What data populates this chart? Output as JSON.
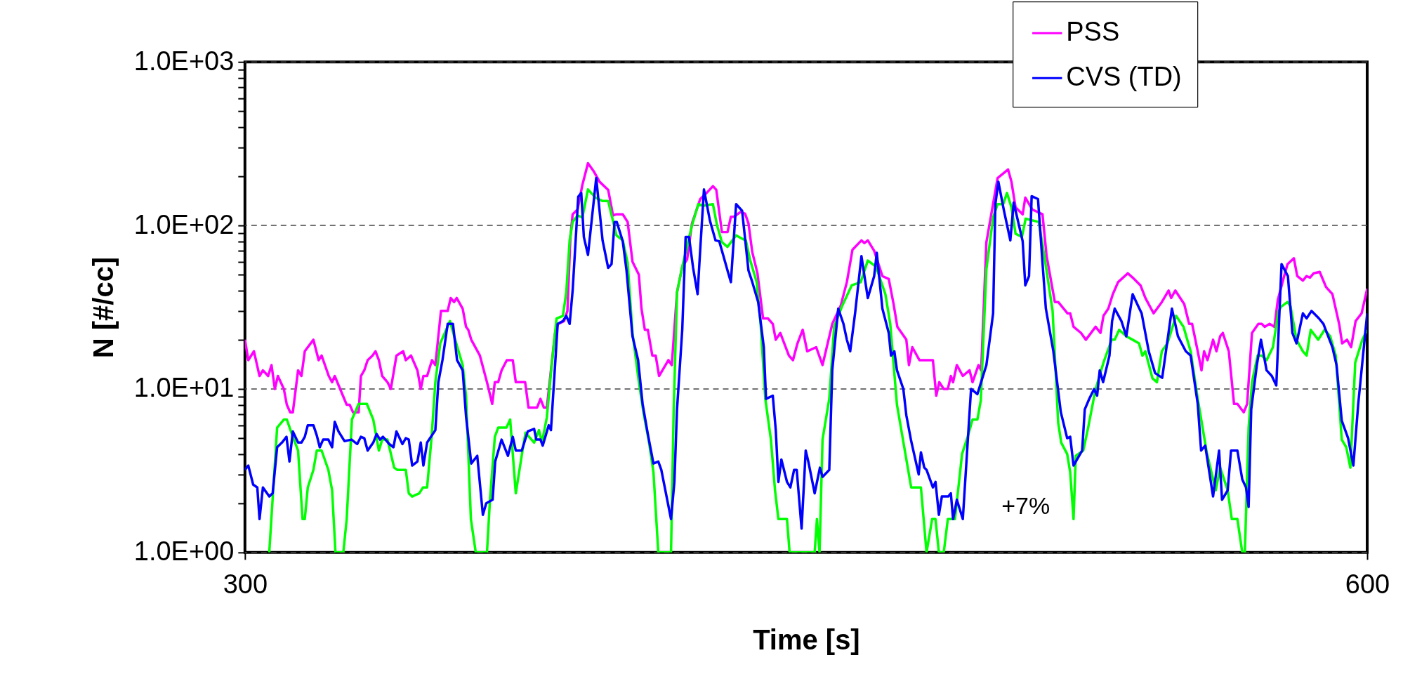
{
  "chart_data": {
    "type": "line",
    "xlabel": "Time [s]",
    "ylabel": "N [#/cc]",
    "log": true,
    "xlim": [
      300,
      600
    ],
    "xticks": [
      300,
      600
    ],
    "ylim": [
      1,
      1000
    ],
    "yticks": [
      {
        "value": 1,
        "label": "1.0E+00"
      },
      {
        "value": 2,
        "label": null
      },
      {
        "value": 3,
        "label": null
      },
      {
        "value": 4,
        "label": null
      },
      {
        "value": 5,
        "label": null
      },
      {
        "value": 6,
        "label": null
      },
      {
        "value": 7,
        "label": null
      },
      {
        "value": 8,
        "label": null
      },
      {
        "value": 9,
        "label": null
      },
      {
        "value": 10,
        "label": "1.0E+01"
      },
      {
        "value": 20,
        "label": null
      },
      {
        "value": 30,
        "label": null
      },
      {
        "value": 40,
        "label": null
      },
      {
        "value": 50,
        "label": null
      },
      {
        "value": 60,
        "label": null
      },
      {
        "value": 70,
        "label": null
      },
      {
        "value": 80,
        "label": null
      },
      {
        "value": 90,
        "label": null
      },
      {
        "value": 100,
        "label": "1.0E+02"
      },
      {
        "value": 200,
        "label": null
      },
      {
        "value": 300,
        "label": null
      },
      {
        "value": 400,
        "label": null
      },
      {
        "value": 500,
        "label": null
      },
      {
        "value": 600,
        "label": null
      },
      {
        "value": 700,
        "label": null
      },
      {
        "value": 800,
        "label": null
      },
      {
        "value": 900,
        "label": null
      },
      {
        "value": 1000,
        "label": "1.0E+03"
      }
    ],
    "grid": "y",
    "legend": "top right",
    "marker": "none",
    "line_style": "solid",
    "annotations": [
      "+7%"
    ],
    "series": [
      {
        "name": "PSS",
        "color": "#ff00ff",
        "x": [
          300,
          300.9,
          302.4,
          303.9,
          304.8,
          306.2,
          307.1,
          308,
          308.8,
          310.4,
          311.2,
          312.1,
          312.8,
          314.2,
          315.1,
          316,
          316.8,
          318.3,
          319.7,
          320.5,
          322.4,
          323.3,
          324,
          327.2,
          328,
          328.9,
          330.4,
          331,
          331.9,
          332.8,
          334.1,
          334.9,
          335.8,
          336.7,
          338.1,
          339,
          340.5,
          342.3,
          343,
          344.4,
          346.1,
          347,
          347.7,
          348.7,
          350,
          350.9,
          352.4,
          354.2,
          355,
          355.9,
          356.6,
          358.2,
          359.1,
          359.7,
          360.5,
          362.8,
          364.7,
          366.1,
          366.8,
          367.7,
          368.6,
          370,
          371.6,
          372.4,
          374.9,
          375.8,
          378.1,
          379,
          379.9,
          380.7,
          382.9,
          383.7,
          385.3,
          386.2,
          387,
          387.6,
          388.9,
          390.2,
          391.7,
          393.2,
          394.8,
          397.1,
          398.4,
          399.3,
          401,
          402.3,
          403.6,
          405.3,
          406,
          406.9,
          407.7,
          408.9,
          409.8,
          410.7,
          413.2,
          414.1,
          415.5,
          416.9,
          418.2,
          419.5,
          421.7,
          423.4,
          425.1,
          426,
          427.5,
          429,
          429.9,
          430.7,
          432.5,
          433.7,
          434.6,
          435.6,
          437,
          438.5,
          439.8,
          441.1,
          441.9,
          443.1,
          445.4,
          446.5,
          447.7,
          449.1,
          450.3,
          452.7,
          454.4,
          457,
          459.2,
          460.9,
          462.4,
          464.8,
          465.6,
          466.5,
          468.2,
          470.4,
          472.1,
          473.4,
          474.4,
          476.8,
          477.5,
          478.4,
          480.3,
          481.6,
          483.9,
          484.8,
          485.6,
          486.8,
          487.9,
          488.7,
          489.3,
          490.3,
          491.9,
          493.7,
          494.5,
          496.1,
          496.8,
          498.2,
          501.2,
          504,
          504.9,
          506,
          507.9,
          508.6,
          510.5,
          513.2,
          514.3,
          516.5,
          517.4,
          519.9,
          520.6,
          521.5,
          523.5,
          524.8,
          527.4,
          528.7,
          529.5,
          530.8,
          532,
          533.4,
          536,
          537.3,
          539.4,
          540.7,
          542.9,
          545.1,
          546.9,
          547.6,
          548.7,
          551.1,
          552.4,
          553.2,
          554.7,
          555.7,
          556.4,
          557.3,
          558.8,
          559.7,
          560.7,
          561.4,
          563,
          564.4,
          565.3,
          567,
          567.9,
          569.2,
          570.9,
          571.8,
          572.6,
          573.9,
          575.2,
          576.1,
          577.8,
          578.7,
          580.4,
          581.3,
          582.8,
          583.8,
          584.7,
          585.7,
          587.3,
          589,
          590.7,
          592.5,
          593.3,
          594.6,
          595.7,
          596.9,
          598.5,
          600
        ],
        "values": [
          20,
          15,
          17,
          12,
          13,
          12,
          14,
          10,
          12,
          10,
          8,
          7.2,
          7.2,
          13,
          12,
          17,
          18,
          20,
          15,
          16,
          12,
          11,
          12,
          8,
          8,
          7.2,
          7.2,
          12,
          13,
          15,
          16,
          17,
          15,
          12,
          11,
          10,
          16,
          17,
          15,
          16,
          13,
          10,
          12,
          12,
          15,
          14,
          30,
          30,
          36,
          34,
          36,
          31,
          24,
          23,
          20,
          16,
          11,
          8.1,
          11,
          11,
          13,
          15,
          15,
          11,
          11,
          7.7,
          7.7,
          8.7,
          7.7,
          7.7,
          22,
          25,
          26,
          30,
          85,
          117,
          125,
          177,
          240,
          215,
          185,
          165,
          115,
          117,
          117,
          105,
          60,
          50,
          31,
          23,
          23,
          16,
          16,
          12,
          15,
          14,
          39,
          56,
          62,
          103,
          145,
          158,
          174,
          165,
          91,
          91,
          113,
          113,
          121,
          118,
          103,
          69,
          51,
          27,
          27,
          25,
          20,
          22,
          16,
          15,
          19,
          23,
          17,
          18,
          14,
          25,
          32,
          45,
          71,
          81,
          78,
          81,
          70,
          49,
          47,
          33,
          24,
          20,
          14,
          18,
          15,
          15,
          15,
          9.1,
          11,
          10,
          10,
          12,
          11,
          14,
          12,
          13,
          11,
          14,
          13,
          79,
          195,
          220,
          185,
          129,
          117,
          148,
          125,
          117,
          65,
          34,
          34,
          29,
          29,
          24,
          22,
          20,
          24,
          22,
          28,
          31,
          38,
          45,
          51,
          48,
          43,
          36,
          29,
          34,
          40,
          36,
          40,
          33,
          25,
          25,
          17,
          13,
          17,
          15,
          20,
          17,
          21,
          22,
          17,
          8.1,
          8.1,
          7.2,
          8.1,
          22,
          25,
          25,
          24,
          25,
          24,
          35,
          49,
          58,
          63,
          49,
          46,
          49,
          48,
          51,
          52,
          42,
          38,
          25,
          19,
          20,
          18,
          26,
          29,
          41
        ]
      },
      {
        "color": "#00ff00",
        "x": [
          306.5,
          308.6,
          310.4,
          311.2,
          312.8,
          314.2,
          315.4,
          316,
          316.8,
          318.3,
          319.2,
          320.5,
          322.3,
          323.3,
          324.2,
          326.3,
          327.2,
          328.6,
          330.4,
          332.6,
          334.3,
          335.8,
          336.7,
          338.1,
          339.9,
          340.7,
          343,
          343.8,
          344.7,
          346.6,
          347.6,
          348.7,
          349.9,
          350.9,
          352.2,
          354.8,
          356.2,
          358.2,
          359.1,
          360.4,
          361.7,
          364.7,
          365.5,
          366.8,
          367.7,
          369.9,
          370.9,
          372.4,
          374.2,
          375,
          377.3,
          378.6,
          379.4,
          380.7,
          382,
          383.3,
          385,
          385.9,
          386.8,
          387.6,
          388.9,
          390.2,
          391.7,
          393.7,
          395.6,
          397.1,
          399.3,
          401,
          402.3,
          403.6,
          405.3,
          406.6,
          407.9,
          409.2,
          410.5,
          413.9,
          414.6,
          415.5,
          416.9,
          419.5,
          421.2,
          422.5,
          425.1,
          426.2,
          427.5,
          429,
          430.3,
          431.3,
          432.9,
          433.9,
          435,
          436.8,
          437.9,
          439.1,
          440.6,
          441.7,
          442.6,
          444.9,
          445.6,
          452.3,
          452.9,
          453.6,
          454.4,
          456.2,
          457.5,
          459.6,
          462.2,
          464.6,
          466.5,
          468.7,
          471.2,
          472.5,
          474.3,
          476.4,
          478.1,
          480.7,
          482.2,
          483.7,
          484.6,
          485.5,
          486.8,
          487.9,
          489.8,
          491.7,
          493.2,
          494.5,
          495.8,
          496.7,
          498.2,
          500,
          501.2,
          502.7,
          503.7,
          504.9,
          506,
          507.7,
          508.7,
          512.2,
          513.7,
          515.9,
          517.4,
          518.2,
          519.8,
          520.6,
          521.5,
          522.1,
          524.1,
          525.4,
          527.4,
          529.5,
          531.7,
          532.5,
          533.7,
          535.6,
          537.3,
          539,
          539.9,
          540.7,
          542.6,
          543.8,
          545.1,
          546.6,
          548.9,
          550.9,
          552.8,
          554.7,
          557.1,
          559.5,
          560.7,
          562.7,
          563.8,
          565.3,
          566.6,
          567.3,
          568.3,
          569.2,
          570.7,
          571.8,
          573.1,
          574.8,
          576.3,
          577.1,
          578.7,
          579.5,
          581.1,
          582.8,
          583.8,
          584.9,
          586.9,
          588.6,
          590.1,
          591.6,
          593.2,
          594.4,
          595.5,
          596.8,
          598.7,
          600
        ],
        "values": [
          1,
          5.8,
          6.5,
          6.5,
          5.1,
          4.2,
          1.6,
          1.6,
          2.5,
          3.2,
          4.2,
          4.2,
          3.2,
          2.4,
          1,
          1,
          1.6,
          6.5,
          8.1,
          8.1,
          6.5,
          4.2,
          4.9,
          4.9,
          3.3,
          3.2,
          3.2,
          2.3,
          2.2,
          2.3,
          2.5,
          2.5,
          5.1,
          11,
          19,
          26,
          20,
          14,
          9.1,
          1.6,
          1,
          1,
          2.1,
          5.1,
          5.8,
          5.8,
          6.5,
          2.3,
          4.2,
          5.4,
          4.7,
          5.6,
          4.7,
          6.7,
          14,
          27,
          28,
          39,
          81,
          105,
          115,
          112,
          166,
          148,
          141,
          141,
          87,
          81,
          59,
          22,
          11,
          7,
          4.9,
          3.1,
          1,
          1,
          7.3,
          39,
          56,
          100,
          135,
          132,
          135,
          100,
          79,
          74,
          81,
          87,
          83,
          81,
          62,
          45,
          24,
          8.7,
          4.9,
          2.4,
          1.6,
          1.6,
          1,
          1,
          1.6,
          1,
          4.9,
          8.7,
          24,
          32,
          43,
          45,
          61,
          56,
          38,
          25,
          8,
          4.2,
          2.5,
          2.5,
          1,
          1.6,
          1.6,
          1,
          1,
          1.6,
          1.6,
          4,
          5.1,
          6.5,
          6.5,
          8.5,
          54,
          112,
          135,
          135,
          158,
          129,
          89,
          85,
          110,
          105,
          65,
          30,
          6.2,
          4.7,
          4,
          3.1,
          1.6,
          3.9,
          4.2,
          5.8,
          10,
          14.5,
          20,
          20,
          23,
          21,
          20,
          19,
          16,
          17,
          11.6,
          11,
          17,
          19,
          28,
          24,
          17,
          8.7,
          4.1,
          2.4,
          3.3,
          2.4,
          1.6,
          1.6,
          1,
          1,
          5.8,
          11,
          16,
          16,
          15,
          18,
          30,
          32,
          34,
          32,
          20,
          17,
          16,
          23,
          20,
          23,
          21,
          16,
          4.9,
          4.4,
          3.3,
          14.5,
          20,
          23
        ]
      },
      {
        "name": "CVS (TD)",
        "color": "#0000ff",
        "x": [
          300,
          300.9,
          302.2,
          303.3,
          303.9,
          304.8,
          306.5,
          307.4,
          308.6,
          309.9,
          311.1,
          311.9,
          312.8,
          314.2,
          315.1,
          316,
          316.8,
          318.3,
          319.2,
          320,
          320.9,
          322.3,
          323.3,
          324,
          325,
          326.6,
          328.5,
          330,
          331,
          331.9,
          332.8,
          334.3,
          335.2,
          336.1,
          336.9,
          338.6,
          339.7,
          340.5,
          342.1,
          343,
          343.8,
          344.7,
          346.1,
          347,
          347.7,
          348.7,
          350.9,
          351.7,
          352.8,
          354.2,
          355.6,
          356.7,
          358.2,
          359.1,
          360.5,
          362.1,
          363.6,
          364.5,
          366.2,
          366.9,
          368.6,
          370.3,
          371.6,
          372.4,
          374,
          375.6,
          377.3,
          377.9,
          379,
          379.6,
          381.2,
          381.8,
          383.6,
          385,
          385.9,
          386.8,
          387.6,
          389.1,
          389.9,
          390.6,
          391.7,
          393.9,
          395.6,
          397.1,
          398,
          398.8,
          399.4,
          401,
          402,
          403.6,
          405.1,
          406.3,
          407.7,
          409.2,
          410.5,
          411.3,
          413.9,
          414.8,
          415.5,
          416.9,
          417.8,
          418.7,
          419.8,
          421,
          421.7,
          422.7,
          424.3,
          425.8,
          426.8,
          429,
          429.9,
          431.3,
          432.9,
          434.6,
          435.5,
          437.2,
          438.7,
          439.3,
          441.1,
          441.9,
          442.6,
          443.4,
          444.9,
          445.8,
          446.8,
          447.5,
          448.8,
          449.9,
          450.6,
          452.3,
          453.7,
          454.4,
          456.2,
          457,
          458.6,
          460,
          460.9,
          461.8,
          463.1,
          464.8,
          466.5,
          468.2,
          468.9,
          470.4,
          472.1,
          472.7,
          473.6,
          474.3,
          476,
          476.8,
          478.1,
          480.1,
          480.7,
          481.6,
          482.2,
          483.9,
          484.6,
          485.5,
          486.3,
          488,
          488.7,
          489.3,
          490.3,
          491.9,
          494.1,
          495.8,
          498.2,
          500,
          500.6,
          501.4,
          502.9,
          504.6,
          505.5,
          507.9,
          508.6,
          509.6,
          510.3,
          512,
          513.2,
          514.1,
          516.1,
          518.1,
          519.8,
          520.6,
          521.5,
          523.8,
          524.5,
          525.7,
          527,
          527.8,
          528.5,
          529.4,
          531.1,
          531.8,
          532.5,
          534.3,
          535.6,
          537.3,
          538.8,
          539.7,
          541.6,
          543.3,
          545.2,
          547.8,
          549.4,
          551.5,
          552.8,
          554.7,
          555.6,
          556.7,
          558.8,
          560.4,
          561.2,
          562.7,
          563.6,
          565.3,
          566.6,
          567.6,
          568.3,
          569,
          570.5,
          571.6,
          573.1,
          574.5,
          575.7,
          577.1,
          578.8,
          580,
          581.1,
          582.8,
          583.8,
          585.1,
          587.1,
          588.3,
          590.7,
          591.8,
          593.2,
          594.9,
          596.3,
          597.6,
          600
        ],
        "values": [
          3.2,
          3.4,
          2.6,
          2.5,
          1.6,
          2.5,
          2.2,
          2.3,
          4.4,
          4.7,
          5.1,
          3.6,
          5.5,
          4.7,
          4.7,
          5.1,
          6,
          6,
          5.2,
          4.4,
          4.9,
          4.9,
          4.4,
          6.3,
          5.5,
          4.8,
          4.9,
          4.6,
          5.1,
          5,
          4.2,
          4.7,
          5.3,
          4.9,
          5.1,
          4.6,
          4.4,
          5.5,
          4.6,
          5,
          4.9,
          3.4,
          3.6,
          4.7,
          3.4,
          4.7,
          5.6,
          11,
          15,
          25,
          25,
          15,
          13,
          6.8,
          3.5,
          3.9,
          1.7,
          2,
          2.1,
          3.6,
          4.9,
          3.9,
          5.1,
          4.2,
          4.2,
          5.5,
          5.7,
          4.9,
          4.9,
          4.5,
          6,
          5.6,
          25,
          26,
          28,
          25,
          40,
          150,
          158,
          85,
          66,
          195,
          81,
          55,
          58,
          105,
          105,
          80,
          53,
          21,
          15,
          8.1,
          5.3,
          3.5,
          3.6,
          3.2,
          1.6,
          2.7,
          7.5,
          23,
          85,
          85,
          55,
          38,
          71,
          166,
          107,
          81,
          80,
          53,
          45,
          135,
          123,
          53,
          46,
          34,
          18,
          8.7,
          9.1,
          5.6,
          2.7,
          3.7,
          2.7,
          2.5,
          3.2,
          3.2,
          1.4,
          4.2,
          3.6,
          2.3,
          3.3,
          2.9,
          3.2,
          13,
          31,
          25,
          20,
          17,
          29,
          65,
          36,
          49,
          68,
          31,
          22,
          16,
          17,
          13,
          10,
          6.9,
          4.8,
          3,
          4.1,
          3.3,
          3.2,
          2.5,
          2.7,
          1.7,
          2.2,
          2.2,
          2.3,
          1.6,
          2.1,
          1.6,
          10,
          9.3,
          14,
          29,
          135,
          185,
          123,
          81,
          138,
          80,
          43,
          49,
          151,
          145,
          59,
          31,
          17,
          7.2,
          5,
          5.1,
          3.4,
          4.2,
          7.5,
          8.7,
          10,
          9.1,
          13,
          11,
          16,
          26,
          31,
          26,
          21,
          38,
          32,
          29,
          17,
          12.5,
          11.7,
          31,
          21,
          17,
          16,
          8.1,
          4.2,
          4.5,
          2.2,
          4.2,
          2.1,
          2.4,
          4.2,
          4.2,
          2.8,
          2.5,
          1.9,
          7.5,
          14,
          20,
          13,
          12,
          10.5,
          58,
          49,
          22,
          19,
          29,
          27,
          30,
          27,
          25,
          18,
          14,
          6.4,
          5,
          3.4,
          8.1,
          29
        ]
      }
    ]
  }
}
